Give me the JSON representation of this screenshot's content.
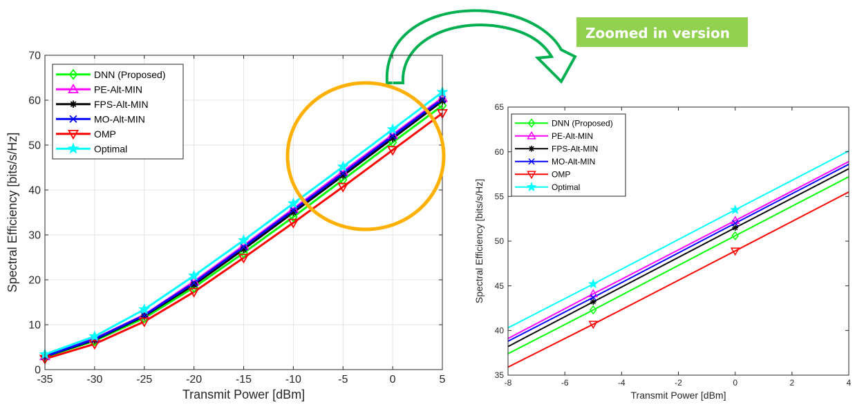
{
  "banner": {
    "text": "Zoomed in version",
    "color": "#92D050"
  },
  "highlight_circle_color": "#FFB000",
  "arrow_color": "#00B050",
  "chart_data": [
    {
      "type": "line",
      "xlabel": "Transmit Power [dBm]",
      "ylabel": "Spectral Efficiency [bits/s/Hz]",
      "xlim": [
        -35,
        5
      ],
      "ylim": [
        0,
        70
      ],
      "xticks": [
        -35,
        -30,
        -25,
        -20,
        -15,
        -10,
        -5,
        0,
        5
      ],
      "yticks": [
        0,
        10,
        20,
        30,
        40,
        50,
        60,
        70
      ],
      "grid": true,
      "legend_position": "top-left",
      "x": [
        -35,
        -30,
        -25,
        -20,
        -15,
        -10,
        -5,
        0,
        5
      ],
      "series": [
        {
          "name": "DNN (Proposed)",
          "color": "#00FF00",
          "marker": "diamond",
          "values": [
            2.8,
            6.4,
            11.5,
            18.3,
            26.0,
            34.0,
            42.3,
            50.6,
            58.8
          ]
        },
        {
          "name": "PE-Alt-MIN",
          "color": "#FF00FF",
          "marker": "triangle-up",
          "values": [
            3.0,
            6.9,
            12.2,
            19.6,
            27.6,
            35.8,
            44.1,
            52.3,
            60.5
          ]
        },
        {
          "name": "FPS-Alt-MIN",
          "color": "#000000",
          "marker": "asterisk",
          "values": [
            2.9,
            6.6,
            11.9,
            18.9,
            26.8,
            35.0,
            43.2,
            51.5,
            59.8
          ]
        },
        {
          "name": "MO-Alt-MIN",
          "color": "#0000FF",
          "marker": "x",
          "values": [
            2.95,
            6.8,
            12.1,
            19.3,
            27.3,
            35.5,
            43.7,
            52.0,
            60.2
          ]
        },
        {
          "name": "OMP",
          "color": "#FF0000",
          "marker": "triangle-down",
          "values": [
            2.4,
            5.7,
            10.7,
            17.3,
            24.9,
            32.7,
            40.7,
            48.9,
            57.1
          ]
        },
        {
          "name": "Optimal",
          "color": "#00FFFF",
          "marker": "star",
          "values": [
            3.4,
            7.4,
            13.4,
            20.9,
            28.8,
            37.0,
            45.2,
            53.5,
            61.8
          ]
        }
      ]
    },
    {
      "type": "line",
      "xlabel": "Transmit Power [dBm]",
      "ylabel": "Spectral Efficiency [bits/s/Hz]",
      "xlim": [
        -8,
        4
      ],
      "ylim": [
        35,
        65
      ],
      "xticks": [
        -8,
        -6,
        -4,
        -2,
        0,
        2,
        4
      ],
      "yticks": [
        35,
        40,
        45,
        50,
        55,
        60,
        65
      ],
      "grid": false,
      "legend_position": "top-left",
      "marker_x": [
        -5,
        0
      ],
      "series": [
        {
          "name": "DNN (Proposed)",
          "color": "#00FF00",
          "marker": "diamond",
          "x": [
            -8,
            -5,
            0,
            4
          ],
          "values": [
            37.4,
            42.3,
            50.6,
            57.2
          ]
        },
        {
          "name": "PE-Alt-MIN",
          "color": "#FF00FF",
          "marker": "triangle-up",
          "x": [
            -8,
            -5,
            0,
            4
          ],
          "values": [
            39.1,
            44.1,
            52.3,
            58.9
          ]
        },
        {
          "name": "FPS-Alt-MIN",
          "color": "#000000",
          "marker": "asterisk",
          "x": [
            -8,
            -5,
            0,
            4
          ],
          "values": [
            38.2,
            43.2,
            51.5,
            58.1
          ]
        },
        {
          "name": "MO-Alt-MIN",
          "color": "#0000FF",
          "marker": "x",
          "x": [
            -8,
            -5,
            0,
            4
          ],
          "values": [
            38.8,
            43.7,
            52.0,
            58.6
          ]
        },
        {
          "name": "OMP",
          "color": "#FF0000",
          "marker": "triangle-down",
          "x": [
            -8,
            -5,
            0,
            4
          ],
          "values": [
            35.9,
            40.7,
            48.9,
            55.5
          ]
        },
        {
          "name": "Optimal",
          "color": "#00FFFF",
          "marker": "star",
          "x": [
            -8,
            -5,
            0,
            4
          ],
          "values": [
            40.3,
            45.2,
            53.5,
            60.1
          ]
        }
      ]
    }
  ]
}
